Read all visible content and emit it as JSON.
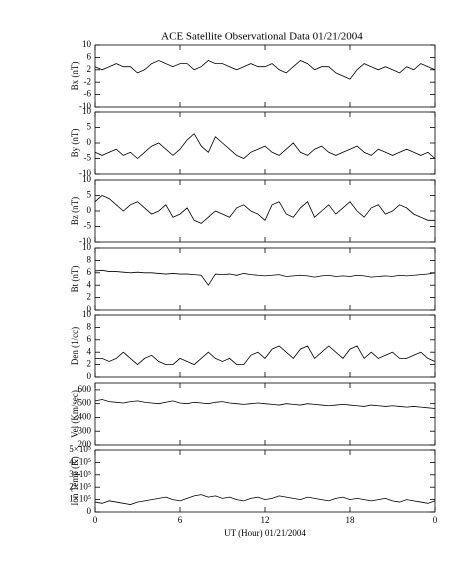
{
  "chart_data": [
    {
      "type": "line",
      "title": "ACE Satellite Observational Data   01/21/2004",
      "ylabel": "Bx (nT)",
      "xlim": [
        0,
        24
      ],
      "ylim": [
        -10,
        10
      ],
      "yticks": [
        10,
        6,
        2,
        -2,
        -6,
        -10
      ],
      "color": "#000000",
      "x": [
        0,
        0.5,
        1,
        1.5,
        2,
        2.5,
        3,
        3.5,
        4,
        4.5,
        5,
        5.5,
        6,
        6.5,
        7,
        7.5,
        8,
        8.5,
        9,
        9.5,
        10,
        10.5,
        11,
        11.5,
        12,
        12.5,
        13,
        13.5,
        14,
        14.5,
        15,
        15.5,
        16,
        16.5,
        17,
        17.5,
        18,
        18.5,
        19,
        19.5,
        20,
        20.5,
        21,
        21.5,
        22,
        22.5,
        23,
        23.5,
        24
      ],
      "values": [
        3,
        2,
        3,
        4,
        3,
        3,
        1,
        2,
        4,
        5,
        4,
        3,
        4,
        4,
        2,
        3,
        5,
        4,
        4,
        3,
        2,
        3,
        4,
        3,
        3,
        4,
        2,
        1,
        3,
        5,
        4,
        2,
        3,
        3,
        1,
        0,
        -1,
        2,
        4,
        3,
        2,
        3,
        2,
        1,
        3,
        2,
        4,
        3,
        2
      ]
    },
    {
      "type": "line",
      "ylabel": "By (nT)",
      "xlim": [
        0,
        24
      ],
      "ylim": [
        -10,
        10
      ],
      "yticks": [
        10,
        5,
        0,
        -5,
        -10
      ],
      "color": "#000000",
      "x": [
        0,
        0.5,
        1,
        1.5,
        2,
        2.5,
        3,
        3.5,
        4,
        4.5,
        5,
        5.5,
        6,
        6.5,
        7,
        7.5,
        8,
        8.5,
        9,
        9.5,
        10,
        10.5,
        11,
        11.5,
        12,
        12.5,
        13,
        13.5,
        14,
        14.5,
        15,
        15.5,
        16,
        16.5,
        17,
        17.5,
        18,
        18.5,
        19,
        19.5,
        20,
        20.5,
        21,
        21.5,
        22,
        22.5,
        23,
        23.5,
        24
      ],
      "values": [
        -3,
        -4,
        -3,
        -2,
        -4,
        -3,
        -5,
        -3,
        -1,
        0,
        -2,
        -4,
        -2,
        1,
        3,
        -1,
        -3,
        2,
        0,
        -2,
        -4,
        -5,
        -3,
        -2,
        -1,
        -3,
        -4,
        -2,
        0,
        -3,
        -4,
        -2,
        -1,
        -3,
        -4,
        -3,
        -2,
        -1,
        -3,
        -4,
        -2,
        -3,
        -4,
        -3,
        -2,
        -3,
        -4,
        -3,
        -5
      ]
    },
    {
      "type": "line",
      "ylabel": "Bz (nT)",
      "xlim": [
        0,
        24
      ],
      "ylim": [
        -10,
        10
      ],
      "yticks": [
        10,
        5,
        0,
        -5,
        -10
      ],
      "color": "#000000",
      "x": [
        0,
        0.5,
        1,
        1.5,
        2,
        2.5,
        3,
        3.5,
        4,
        4.5,
        5,
        5.5,
        6,
        6.5,
        7,
        7.5,
        8,
        8.5,
        9,
        9.5,
        10,
        10.5,
        11,
        11.5,
        12,
        12.5,
        13,
        13.5,
        14,
        14.5,
        15,
        15.5,
        16,
        16.5,
        17,
        17.5,
        18,
        18.5,
        19,
        19.5,
        20,
        20.5,
        21,
        21.5,
        22,
        22.5,
        23,
        23.5,
        24
      ],
      "values": [
        3,
        5,
        4,
        2,
        0,
        2,
        3,
        1,
        -1,
        0,
        2,
        -2,
        -1,
        1,
        -3,
        -4,
        -2,
        0,
        -1,
        -2,
        1,
        2,
        0,
        -1,
        -3,
        2,
        3,
        -1,
        -2,
        1,
        3,
        -2,
        0,
        2,
        -1,
        1,
        3,
        0,
        -2,
        1,
        2,
        -1,
        0,
        2,
        1,
        -1,
        -2,
        -3,
        -3
      ]
    },
    {
      "type": "line",
      "ylabel": "Bt (nT)",
      "xlim": [
        0,
        24
      ],
      "ylim": [
        0,
        10
      ],
      "yticks": [
        10,
        8,
        6,
        4,
        2,
        0
      ],
      "color": "#000000",
      "x": [
        0,
        0.5,
        1,
        1.5,
        2,
        2.5,
        3,
        3.5,
        4,
        4.5,
        5,
        5.5,
        6,
        6.5,
        7,
        7.5,
        8,
        8.5,
        9,
        9.5,
        10,
        10.5,
        11,
        11.5,
        12,
        12.5,
        13,
        13.5,
        14,
        14.5,
        15,
        15.5,
        16,
        16.5,
        17,
        17.5,
        18,
        18.5,
        19,
        19.5,
        20,
        20.5,
        21,
        21.5,
        22,
        22.5,
        23,
        23.5,
        24
      ],
      "values": [
        6.3,
        6.4,
        6.2,
        6.2,
        6.1,
        6.0,
        6.1,
        6.0,
        6.0,
        5.9,
        5.8,
        5.9,
        5.8,
        5.8,
        5.7,
        5.6,
        4.0,
        5.8,
        5.7,
        5.8,
        5.6,
        5.9,
        5.7,
        5.6,
        5.5,
        5.6,
        5.7,
        5.4,
        5.5,
        5.6,
        5.5,
        5.3,
        5.5,
        5.6,
        5.4,
        5.5,
        5.4,
        5.6,
        5.5,
        5.3,
        5.4,
        5.5,
        5.4,
        5.6,
        5.5,
        5.6,
        5.7,
        5.8,
        6.0
      ]
    },
    {
      "type": "line",
      "ylabel": "Den (1/cc)",
      "xlim": [
        0,
        24
      ],
      "ylim": [
        0,
        10
      ],
      "yticks": [
        10,
        8,
        6,
        4,
        2,
        0
      ],
      "color": "#000000",
      "x": [
        0,
        0.5,
        1,
        1.5,
        2,
        2.5,
        3,
        3.5,
        4,
        4.5,
        5,
        5.5,
        6,
        6.5,
        7,
        7.5,
        8,
        8.5,
        9,
        9.5,
        10,
        10.5,
        11,
        11.5,
        12,
        12.5,
        13,
        13.5,
        14,
        14.5,
        15,
        15.5,
        16,
        16.5,
        17,
        17.5,
        18,
        18.5,
        19,
        19.5,
        20,
        20.5,
        21,
        21.5,
        22,
        22.5,
        23,
        23.5,
        24
      ],
      "values": [
        3,
        3,
        2.5,
        3,
        4,
        3,
        2,
        3,
        3.5,
        2.5,
        2,
        2,
        3,
        2.5,
        2,
        3,
        4,
        3,
        2.5,
        3,
        2,
        2,
        3.5,
        4,
        3,
        4.5,
        5,
        4,
        3,
        4.5,
        5,
        3,
        4,
        5,
        4,
        3,
        4.5,
        5,
        3,
        4,
        3,
        3.5,
        4,
        3,
        3,
        3.5,
        4,
        3,
        2.5
      ]
    },
    {
      "type": "line",
      "ylabel": "Vel (Km/sec)",
      "xlim": [
        0,
        24
      ],
      "ylim": [
        200,
        650
      ],
      "yticks": [
        600,
        500,
        400,
        300,
        200
      ],
      "color": "#000000",
      "x": [
        0,
        0.5,
        1,
        1.5,
        2,
        2.5,
        3,
        3.5,
        4,
        4.5,
        5,
        5.5,
        6,
        6.5,
        7,
        7.5,
        8,
        8.5,
        9,
        9.5,
        10,
        10.5,
        11,
        11.5,
        12,
        12.5,
        13,
        13.5,
        14,
        14.5,
        15,
        15.5,
        16,
        16.5,
        17,
        17.5,
        18,
        18.5,
        19,
        19.5,
        20,
        20.5,
        21,
        21.5,
        22,
        22.5,
        23,
        23.5,
        24
      ],
      "values": [
        520,
        530,
        515,
        510,
        505,
        515,
        520,
        510,
        505,
        500,
        510,
        520,
        505,
        500,
        510,
        505,
        500,
        510,
        515,
        505,
        500,
        495,
        500,
        505,
        500,
        495,
        490,
        500,
        495,
        490,
        500,
        495,
        490,
        485,
        490,
        495,
        490,
        485,
        480,
        490,
        485,
        480,
        485,
        480,
        475,
        480,
        475,
        470,
        465
      ]
    },
    {
      "type": "line",
      "ylabel": "Ion Temp (K)",
      "xlabel": "UT (Hour)   01/21/2004",
      "xlim": [
        0,
        24
      ],
      "ylim": [
        0,
        500000
      ],
      "yticks": [
        {
          "value": 500000,
          "label": "5×10⁵"
        },
        {
          "value": 400000,
          "label": "4×10⁵"
        },
        {
          "value": 300000,
          "label": "3×10⁵"
        },
        {
          "value": 200000,
          "label": "2×10⁵"
        },
        {
          "value": 100000,
          "label": "1×10⁵"
        },
        0
      ],
      "xticks": [
        0,
        6,
        12,
        18,
        {
          "value": 24,
          "label": "0"
        }
      ],
      "color": "#000000",
      "x": [
        0,
        0.5,
        1,
        1.5,
        2,
        2.5,
        3,
        3.5,
        4,
        4.5,
        5,
        5.5,
        6,
        6.5,
        7,
        7.5,
        8,
        8.5,
        9,
        9.5,
        10,
        10.5,
        11,
        11.5,
        12,
        12.5,
        13,
        13.5,
        14,
        14.5,
        15,
        15.5,
        16,
        16.5,
        17,
        17.5,
        18,
        18.5,
        19,
        19.5,
        20,
        20.5,
        21,
        21.5,
        22,
        22.5,
        23,
        23.5,
        24
      ],
      "values": [
        80000,
        70000,
        90000,
        80000,
        70000,
        60000,
        80000,
        90000,
        100000,
        110000,
        120000,
        100000,
        90000,
        110000,
        130000,
        140000,
        120000,
        130000,
        110000,
        120000,
        100000,
        90000,
        110000,
        120000,
        100000,
        110000,
        130000,
        120000,
        110000,
        100000,
        120000,
        110000,
        100000,
        90000,
        110000,
        120000,
        100000,
        110000,
        100000,
        90000,
        100000,
        110000,
        90000,
        80000,
        100000,
        90000,
        80000,
        70000,
        90000
      ]
    }
  ]
}
